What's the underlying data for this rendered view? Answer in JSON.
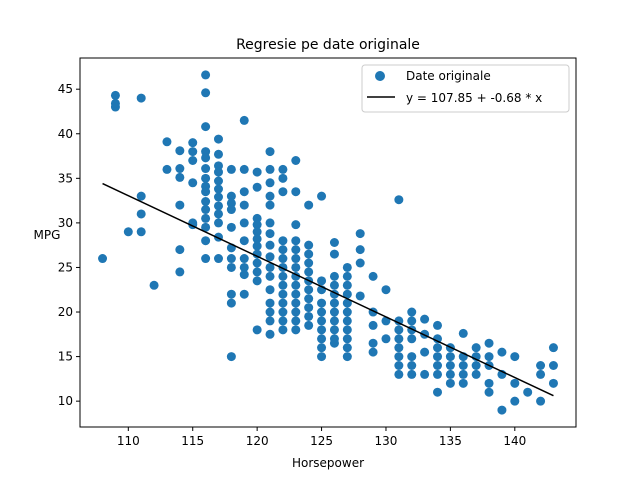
{
  "chart_data": {
    "type": "scatter",
    "title": "Regresie pe date originale",
    "xlabel": "Horsepower",
    "ylabel": "MPG",
    "xlim": [
      106.25,
      144.75
    ],
    "ylim": [
      7.1,
      48.5
    ],
    "xticks": [
      110,
      115,
      120,
      125,
      130,
      135,
      140
    ],
    "yticks": [
      10,
      15,
      20,
      25,
      30,
      35,
      40,
      45
    ],
    "grid": false,
    "legend_position": "top-right",
    "colors": {
      "scatter": "#1f77b4",
      "line": "#000000"
    },
    "series": [
      {
        "name": "Date originale",
        "kind": "scatter",
        "points": [
          [
            108,
            26
          ],
          [
            109,
            43
          ],
          [
            109,
            43.4
          ],
          [
            109,
            44.3
          ],
          [
            110,
            29
          ],
          [
            111,
            44
          ],
          [
            111,
            33
          ],
          [
            111,
            31
          ],
          [
            111,
            29
          ],
          [
            112,
            23
          ],
          [
            113,
            39.1
          ],
          [
            113,
            36
          ],
          [
            114,
            38.1
          ],
          [
            114,
            36.1
          ],
          [
            114,
            35.1
          ],
          [
            114,
            32
          ],
          [
            114,
            27
          ],
          [
            114,
            24.5
          ],
          [
            115,
            39
          ],
          [
            115,
            38
          ],
          [
            115,
            37
          ],
          [
            115,
            34.5
          ],
          [
            115,
            30
          ],
          [
            115,
            29.8
          ],
          [
            116,
            46.6
          ],
          [
            116,
            44.6
          ],
          [
            116,
            40.8
          ],
          [
            116,
            38
          ],
          [
            116,
            37.3
          ],
          [
            116,
            36.1
          ],
          [
            116,
            35
          ],
          [
            116,
            34.1
          ],
          [
            116,
            33.5
          ],
          [
            116,
            32.4
          ],
          [
            116,
            31.5
          ],
          [
            116,
            30.5
          ],
          [
            116,
            29.5
          ],
          [
            116,
            28
          ],
          [
            116,
            26
          ],
          [
            117,
            39.4
          ],
          [
            117,
            37.7
          ],
          [
            117,
            36.4
          ],
          [
            117,
            35.7
          ],
          [
            117,
            34.7
          ],
          [
            117,
            33.8
          ],
          [
            117,
            32.9
          ],
          [
            117,
            31.9
          ],
          [
            117,
            31
          ],
          [
            117,
            30
          ],
          [
            117,
            28.4
          ],
          [
            117,
            26
          ],
          [
            118,
            36
          ],
          [
            118,
            33
          ],
          [
            118,
            32.2
          ],
          [
            118,
            31.5
          ],
          [
            118,
            29.5
          ],
          [
            118,
            27.2
          ],
          [
            118,
            26
          ],
          [
            118,
            25
          ],
          [
            118,
            22
          ],
          [
            118,
            21
          ],
          [
            118,
            15
          ],
          [
            119,
            41.5
          ],
          [
            119,
            36
          ],
          [
            119,
            33.5
          ],
          [
            119,
            32
          ],
          [
            119,
            30
          ],
          [
            119,
            28
          ],
          [
            119,
            26
          ],
          [
            119,
            25
          ],
          [
            119,
            24.2
          ],
          [
            119,
            22
          ],
          [
            120,
            35.7
          ],
          [
            120,
            34
          ],
          [
            120,
            30.5
          ],
          [
            120,
            29.8
          ],
          [
            120,
            29
          ],
          [
            120,
            28.2
          ],
          [
            120,
            27.4
          ],
          [
            120,
            26.5
          ],
          [
            120,
            25.5
          ],
          [
            120,
            24.5
          ],
          [
            120,
            23.5
          ],
          [
            120,
            18
          ],
          [
            121,
            38
          ],
          [
            121,
            36
          ],
          [
            121,
            34.5
          ],
          [
            121,
            33
          ],
          [
            121,
            32
          ],
          [
            121,
            30
          ],
          [
            121,
            28.8
          ],
          [
            121,
            27.5
          ],
          [
            121,
            26.2
          ],
          [
            121,
            25
          ],
          [
            121,
            24
          ],
          [
            121,
            22.5
          ],
          [
            121,
            21
          ],
          [
            121,
            20
          ],
          [
            121,
            19
          ],
          [
            121,
            17.5
          ],
          [
            122,
            36
          ],
          [
            122,
            35
          ],
          [
            122,
            33.5
          ],
          [
            122,
            28
          ],
          [
            122,
            27
          ],
          [
            122,
            26
          ],
          [
            122,
            25
          ],
          [
            122,
            24
          ],
          [
            122,
            23
          ],
          [
            122,
            22
          ],
          [
            122,
            21
          ],
          [
            122,
            20
          ],
          [
            122,
            19
          ],
          [
            122,
            18
          ],
          [
            123,
            37
          ],
          [
            123,
            33.5
          ],
          [
            123,
            29.8
          ],
          [
            123,
            28
          ],
          [
            123,
            27
          ],
          [
            123,
            26
          ],
          [
            123,
            25
          ],
          [
            123,
            24
          ],
          [
            123,
            23
          ],
          [
            123,
            22
          ],
          [
            123,
            21
          ],
          [
            123,
            20
          ],
          [
            123,
            19
          ],
          [
            123,
            18
          ],
          [
            124,
            32
          ],
          [
            124,
            27.5
          ],
          [
            124,
            26.5
          ],
          [
            124,
            25.5
          ],
          [
            124,
            24.5
          ],
          [
            124,
            23.5
          ],
          [
            124,
            22.5
          ],
          [
            124,
            21.5
          ],
          [
            124,
            20.5
          ],
          [
            124,
            19.5
          ],
          [
            124,
            18.5
          ],
          [
            125,
            33
          ],
          [
            125,
            23.5
          ],
          [
            125,
            22.5
          ],
          [
            125,
            21
          ],
          [
            125,
            20
          ],
          [
            125,
            19
          ],
          [
            125,
            18
          ],
          [
            125,
            17
          ],
          [
            125,
            16
          ],
          [
            125,
            15
          ],
          [
            126,
            27.8
          ],
          [
            126,
            26.5
          ],
          [
            126,
            24
          ],
          [
            126,
            23
          ],
          [
            126,
            22
          ],
          [
            126,
            21
          ],
          [
            126,
            20
          ],
          [
            126,
            19
          ],
          [
            126,
            18
          ],
          [
            126,
            17
          ],
          [
            126,
            16.5
          ],
          [
            127,
            25
          ],
          [
            127,
            24
          ],
          [
            127,
            23
          ],
          [
            127,
            22
          ],
          [
            127,
            21
          ],
          [
            127,
            20
          ],
          [
            127,
            19
          ],
          [
            127,
            18
          ],
          [
            127,
            17
          ],
          [
            127,
            16
          ],
          [
            127,
            15
          ],
          [
            128,
            28.8
          ],
          [
            128,
            27
          ],
          [
            128,
            25.5
          ],
          [
            128,
            21.8
          ],
          [
            129,
            24
          ],
          [
            129,
            20
          ],
          [
            129,
            18.5
          ],
          [
            129,
            16.5
          ],
          [
            129,
            15.5
          ],
          [
            130,
            22.5
          ],
          [
            130,
            19
          ],
          [
            130,
            17
          ],
          [
            131,
            32.6
          ],
          [
            131,
            19
          ],
          [
            131,
            18
          ],
          [
            131,
            17
          ],
          [
            131,
            16
          ],
          [
            131,
            15
          ],
          [
            131,
            14
          ],
          [
            131,
            13
          ],
          [
            132,
            20
          ],
          [
            132,
            19
          ],
          [
            132,
            18
          ],
          [
            132,
            17
          ],
          [
            132,
            15
          ],
          [
            132,
            14
          ],
          [
            132,
            13
          ],
          [
            133,
            19.2
          ],
          [
            133,
            17.5
          ],
          [
            133,
            15.5
          ],
          [
            133,
            13
          ],
          [
            134,
            18.5
          ],
          [
            134,
            17
          ],
          [
            134,
            16
          ],
          [
            134,
            15
          ],
          [
            134,
            14
          ],
          [
            134,
            13
          ],
          [
            134,
            11
          ],
          [
            135,
            16
          ],
          [
            135,
            15
          ],
          [
            135,
            14
          ],
          [
            135,
            13
          ],
          [
            135,
            12
          ],
          [
            136,
            17.6
          ],
          [
            136,
            15
          ],
          [
            136,
            14
          ],
          [
            136,
            13
          ],
          [
            136,
            12
          ],
          [
            137,
            16
          ],
          [
            137,
            15
          ],
          [
            137,
            14
          ],
          [
            137,
            13
          ],
          [
            138,
            16.5
          ],
          [
            138,
            15
          ],
          [
            138,
            14
          ],
          [
            138,
            12
          ],
          [
            138,
            11
          ],
          [
            139,
            15.5
          ],
          [
            139,
            13
          ],
          [
            139,
            9
          ],
          [
            140,
            15
          ],
          [
            140,
            12
          ],
          [
            140,
            10
          ],
          [
            141,
            11
          ],
          [
            142,
            14
          ],
          [
            142,
            13
          ],
          [
            142,
            10
          ],
          [
            143,
            16
          ],
          [
            143,
            14
          ],
          [
            143,
            12
          ]
        ]
      },
      {
        "name": "y = 107.85 + -0.68 * x",
        "kind": "line",
        "intercept": 107.85,
        "slope": -0.68,
        "x_range": [
          108,
          143
        ]
      }
    ]
  }
}
